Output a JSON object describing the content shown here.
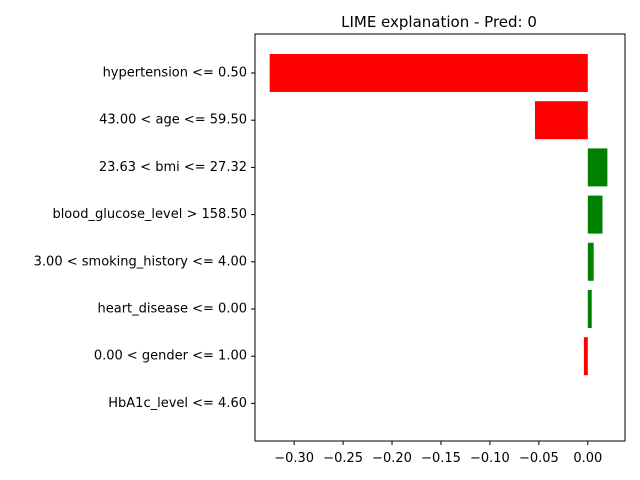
{
  "chart_data": {
    "type": "bar",
    "orientation": "horizontal",
    "title": "LIME explanation - Pred: 0",
    "xlabel": "",
    "ylabel": "",
    "categories": [
      "hypertension <= 0.50",
      "43.00 < age <= 59.50",
      "23.63 < bmi <= 27.32",
      "blood_glucose_level > 158.50",
      "3.00 < smoking_history <= 4.00",
      "heart_disease <= 0.00",
      "0.00 < gender <= 1.00",
      "HbA1c_level <= 4.60"
    ],
    "values": [
      -0.325,
      -0.054,
      0.02,
      0.015,
      0.006,
      0.004,
      -0.004,
      0.0
    ],
    "colors": {
      "positive": "#008000",
      "negative": "#ff0000"
    },
    "xlim": [
      -0.34,
      0.038
    ],
    "xticks": [
      -0.3,
      -0.25,
      -0.2,
      -0.15,
      -0.1,
      -0.05,
      0.0
    ],
    "xtick_labels": [
      "−0.30",
      "−0.25",
      "−0.20",
      "−0.15",
      "−0.10",
      "−0.05",
      "0.00"
    ],
    "grid": false,
    "legend": "none"
  }
}
